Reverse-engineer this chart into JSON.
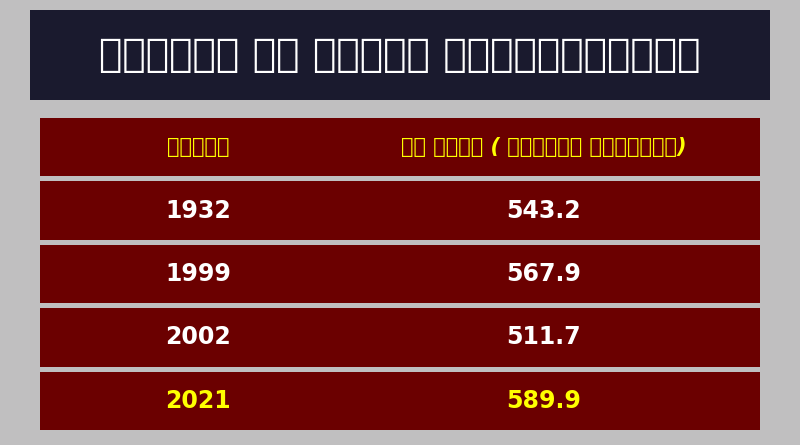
{
  "title": "കനത്ത് മഴ പെയ്ത ഒക്ടോബരുകള്‍",
  "col1_header": "വര്ഷം",
  "col2_header": "മഴ അളവ് ( മില്ലി മീറ്റര്)",
  "years": [
    "1932",
    "1999",
    "2002",
    "2021"
  ],
  "values": [
    "543.2",
    "567.9",
    "511.7",
    "589.9"
  ],
  "highlight_row": 3,
  "bg_color": "#c0bfc0",
  "header_bg": "#1a1a2e",
  "row_bg": "#6b0000",
  "title_color": "#ffffff",
  "header_text_color": "#ffff00",
  "row_text_color": "#ffffff",
  "highlight_text_color": "#ffff00",
  "title_fontsize": 28,
  "header_fontsize": 15,
  "data_fontsize": 17
}
